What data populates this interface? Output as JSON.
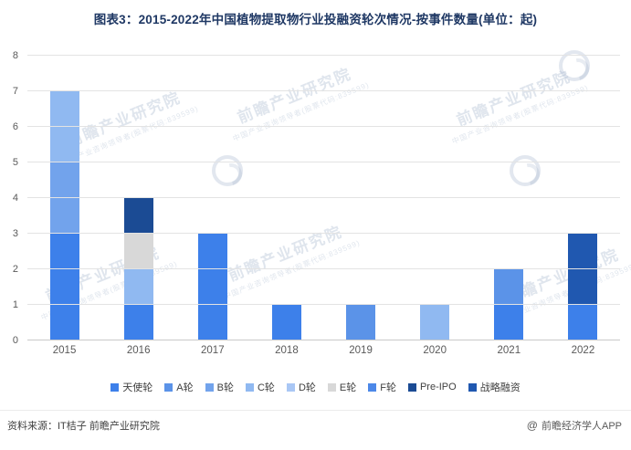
{
  "header": {
    "title": "图表3：2015-2022年中国植物提取物行业投融资轮次情况-按事件数量(单位：起)"
  },
  "chart_data": {
    "type": "bar",
    "stacked": true,
    "title": "图表3：2015-2022年中国植物提取物行业投融资轮次情况-按事件数量(单位：起)",
    "unit": "起",
    "categories": [
      "2015",
      "2016",
      "2017",
      "2018",
      "2019",
      "2020",
      "2021",
      "2022"
    ],
    "series": [
      {
        "name": "天使轮",
        "color": "#3D80EA",
        "values": [
          3,
          1,
          3,
          1,
          0,
          0,
          1,
          1
        ]
      },
      {
        "name": "A轮",
        "color": "#5B93E8",
        "values": [
          0,
          0,
          0,
          0,
          1,
          0,
          1,
          0
        ]
      },
      {
        "name": "B轮",
        "color": "#72A3EC",
        "values": [
          2,
          0,
          0,
          0,
          0,
          0,
          0,
          0
        ]
      },
      {
        "name": "C轮",
        "color": "#90B9F1",
        "values": [
          2,
          1,
          0,
          0,
          0,
          1,
          0,
          0
        ]
      },
      {
        "name": "D轮",
        "color": "#A9C7F5",
        "values": [
          0,
          0,
          0,
          0,
          0,
          0,
          0,
          0
        ]
      },
      {
        "name": "E轮",
        "color": "#D8D8D8",
        "values": [
          0,
          1,
          0,
          0,
          0,
          0,
          0,
          0
        ]
      },
      {
        "name": "F轮",
        "color": "#4C88E8",
        "values": [
          0,
          0,
          0,
          0,
          0,
          0,
          0,
          0
        ]
      },
      {
        "name": "Pre-IPO",
        "color": "#1B4B94",
        "values": [
          0,
          1,
          0,
          0,
          0,
          0,
          0,
          0
        ]
      },
      {
        "name": "战略融资",
        "color": "#2058B0",
        "values": [
          0,
          0,
          0,
          0,
          0,
          0,
          0,
          2
        ]
      }
    ],
    "totals": [
      7,
      4,
      3,
      1,
      1,
      1,
      2,
      3
    ],
    "ylim": [
      0,
      8
    ],
    "ytick_step": 1,
    "grid": true,
    "legend_position": "bottom"
  },
  "watermark": {
    "line1": "前瞻产业研究院",
    "line2": "中国产业咨询领导者(股票代码:839599)"
  },
  "footer": {
    "source": "资料来源：IT桔子 前瞻产业研究院",
    "brand_at": "@",
    "brand": "前瞻经济学人APP"
  }
}
